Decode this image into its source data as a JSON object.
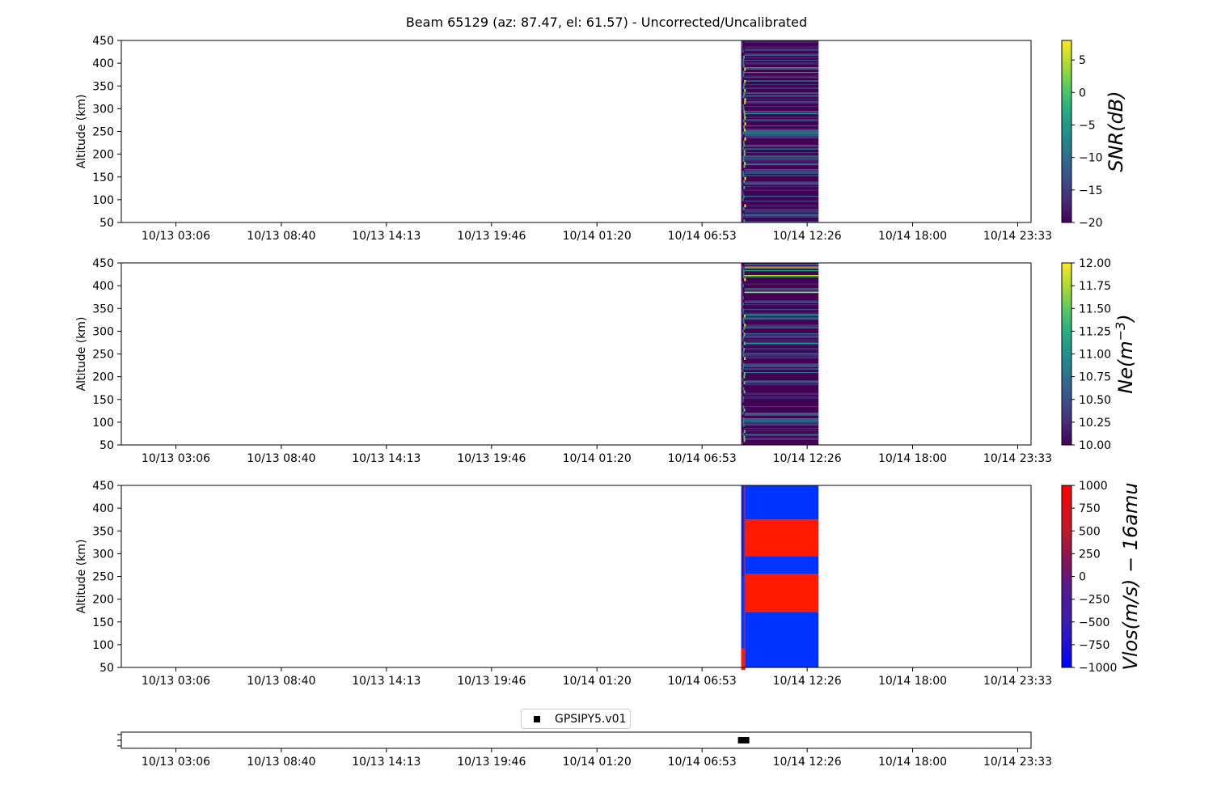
{
  "title": "Beam 65129 (az: 87.47, el: 61.57) - Uncorrected/Uncalibrated",
  "x_tick_labels": [
    "10/13 03:06",
    "10/13 08:40",
    "10/13 14:13",
    "10/13 19:46",
    "10/14 01:20",
    "10/14 06:53",
    "10/14 12:26",
    "10/14 18:00",
    "10/14 23:33"
  ],
  "y_tick_labels": [
    "50",
    "100",
    "150",
    "200",
    "250",
    "300",
    "350",
    "400",
    "450"
  ],
  "ylabel": "Altitude (km)",
  "legend_label": "GPSIPY5.v01",
  "chart_data": [
    {
      "type": "heatmap",
      "panel": "snr",
      "xlabel": "",
      "ylabel": "Altitude (km)",
      "ylim": [
        50,
        450
      ],
      "x_ticks": [
        "10/13 03:06",
        "10/13 08:40",
        "10/13 14:13",
        "10/13 19:46",
        "10/14 01:20",
        "10/14 06:53",
        "10/14 12:26",
        "10/14 18:00",
        "10/14 23:33"
      ],
      "data_time_range": [
        "10/14 08:57",
        "10/14 13:02"
      ],
      "colormap": "viridis",
      "colorbar": {
        "label": "SNR(dB)",
        "range": [
          -20,
          8
        ],
        "tick_labels": [
          "-20",
          "-15",
          "-10",
          "-5",
          "0",
          "5"
        ]
      },
      "typical_value": -17
    },
    {
      "type": "heatmap",
      "panel": "ne",
      "xlabel": "",
      "ylabel": "Altitude (km)",
      "ylim": [
        50,
        450
      ],
      "x_ticks": [
        "10/13 03:06",
        "10/13 08:40",
        "10/13 14:13",
        "10/13 19:46",
        "10/14 01:20",
        "10/14 06:53",
        "10/14 12:26",
        "10/14 18:00",
        "10/14 23:33"
      ],
      "data_time_range": [
        "10/14 08:57",
        "10/14 13:02"
      ],
      "colormap": "viridis",
      "colorbar": {
        "label": "Ne(m^-3)",
        "range": [
          10.0,
          12.0
        ],
        "tick_labels": [
          "10.00",
          "10.25",
          "10.50",
          "10.75",
          "11.00",
          "11.25",
          "11.50",
          "11.75",
          "12.00"
        ]
      },
      "typical_value": 10.1
    },
    {
      "type": "heatmap",
      "panel": "vlos",
      "xlabel": "",
      "ylabel": "Altitude (km)",
      "ylim": [
        50,
        450
      ],
      "x_ticks": [
        "10/13 03:06",
        "10/13 08:40",
        "10/13 14:13",
        "10/13 19:46",
        "10/14 01:20",
        "10/14 06:53",
        "10/14 12:26",
        "10/14 18:00",
        "10/14 23:33"
      ],
      "data_time_range": [
        "10/14 08:57",
        "10/14 13:02"
      ],
      "colormap": "bwr",
      "colorbar": {
        "label": "Vlos(m/s) - 16amu",
        "range": [
          -1000,
          1000
        ],
        "tick_labels": [
          "-1000",
          "-750",
          "-500",
          "-250",
          "0",
          "250",
          "500",
          "750",
          "1000"
        ]
      },
      "bands": [
        {
          "alt": [
            50,
            172
          ],
          "value": -1000
        },
        {
          "alt": [
            172,
            255
          ],
          "value": 1000
        },
        {
          "alt": [
            255,
            295
          ],
          "value": -1000
        },
        {
          "alt": [
            295,
            375
          ],
          "value": 1000
        },
        {
          "alt": [
            375,
            450
          ],
          "value": -1000
        }
      ]
    },
    {
      "type": "scatter",
      "panel": "receiver",
      "series": [
        {
          "name": "GPSIPY5.v01",
          "x": [
            "10/14 08:57",
            "10/14 09:13"
          ],
          "marker": "square",
          "color": "#000000"
        }
      ]
    }
  ],
  "colors": {
    "viridis_dark": "#440154",
    "viridis_blue": "#31688e",
    "viridis_teal": "#21918c",
    "viridis_green": "#35b779",
    "viridis_yellow": "#fde725",
    "bwr_blue": "#0033ff",
    "bwr_red": "#ff1a00",
    "bwr_purple": "#2a1a8a"
  }
}
